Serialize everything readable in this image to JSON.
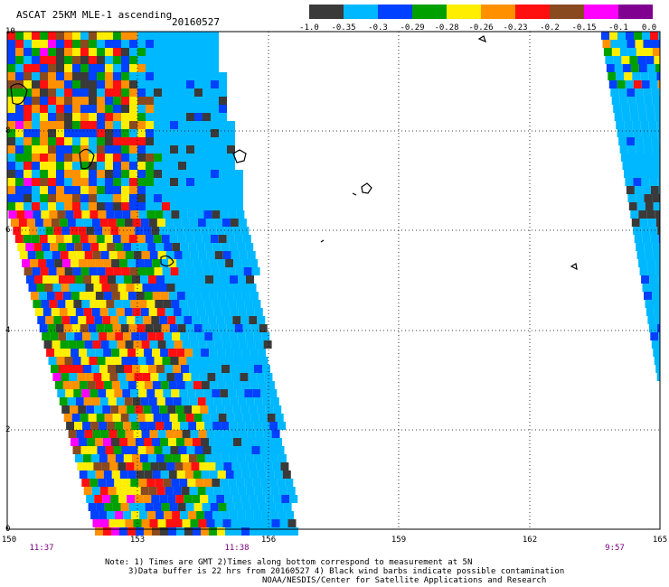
{
  "header": {
    "title": "ASCAT 25KM MLE-1 ascending",
    "date": "20160527"
  },
  "legend": {
    "colors": [
      "#3a3a3a",
      "#00b8ff",
      "#0040ff",
      "#00a000",
      "#ffee00",
      "#ff9000",
      "#ff1010",
      "#8a4a20",
      "#ff00ff",
      "#800090"
    ],
    "labels": [
      "-1.0",
      "-0.35",
      "-0.3",
      "-0.29",
      "-0.28",
      "-0.26",
      "-0.23",
      "-0.2",
      "-0.15",
      "-0.1",
      "0.0"
    ]
  },
  "axes": {
    "y_ticks": [
      "10",
      "8",
      "6",
      "4",
      "2",
      "0"
    ],
    "x_ticks": [
      "150",
      "153",
      "156",
      "159",
      "162",
      "165"
    ],
    "time_labels": [
      "11:37",
      "11:38",
      "9:57"
    ]
  },
  "notes": {
    "line1": "Note: 1) Times are GMT 2)Times along bottom correspond to measurement at 5N",
    "line2": "3)Data buffer is 22 hrs from 20160527 4) Black wind barbs indicate possible contamination",
    "line3": "NOAA/NESDIS/Center for Satellite Applications and Research"
  }
}
